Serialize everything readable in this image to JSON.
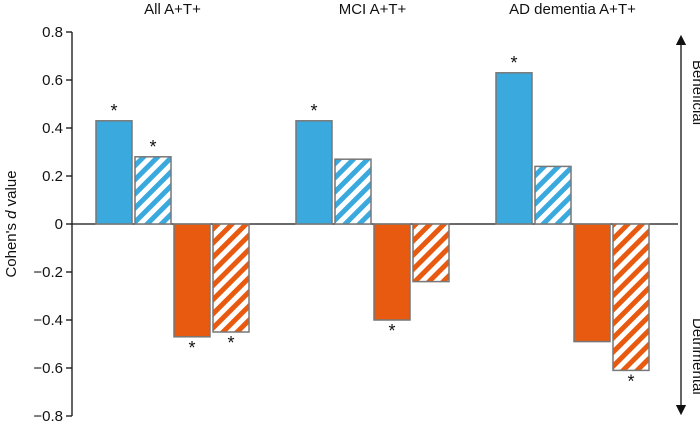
{
  "chart_data": {
    "type": "bar",
    "title": "",
    "ylabel_parts": [
      "Cohen's ",
      "d",
      " value"
    ],
    "ylabel": "Cohen's d value",
    "ylim": [
      -0.8,
      0.8
    ],
    "yticks": [
      0.8,
      0.6,
      0.4,
      0.2,
      0,
      -0.2,
      -0.4,
      -0.6,
      -0.8
    ],
    "ytick_labels": [
      "0.8",
      "0.6",
      "0.4",
      "0.2",
      "0",
      "−0.2",
      "−0.4",
      "−0.6",
      "−0.8"
    ],
    "categories": [
      "All A+T+",
      "MCI A+T+",
      "AD dementia A+T+"
    ],
    "series": [
      {
        "name": "beneficial-solid",
        "color": "#3aa9de",
        "hatched": false,
        "values": [
          0.43,
          0.43,
          0.63
        ],
        "significant": [
          true,
          true,
          true
        ]
      },
      {
        "name": "beneficial-hatched",
        "color": "#3aa9de",
        "hatched": true,
        "values": [
          0.28,
          0.27,
          0.24
        ],
        "significant": [
          true,
          false,
          false
        ]
      },
      {
        "name": "detrimental-solid",
        "color": "#e85a0f",
        "hatched": false,
        "values": [
          -0.47,
          -0.4,
          -0.49
        ],
        "significant": [
          true,
          true,
          false
        ]
      },
      {
        "name": "detrimental-hatched",
        "color": "#e85a0f",
        "hatched": true,
        "values": [
          -0.45,
          -0.24,
          -0.61
        ],
        "significant": [
          true,
          false,
          true
        ]
      }
    ],
    "significance_marker": "*",
    "right_annotations": {
      "top": "Beneficial",
      "bottom": "Detrimental"
    },
    "grid": false,
    "legend": "none"
  }
}
